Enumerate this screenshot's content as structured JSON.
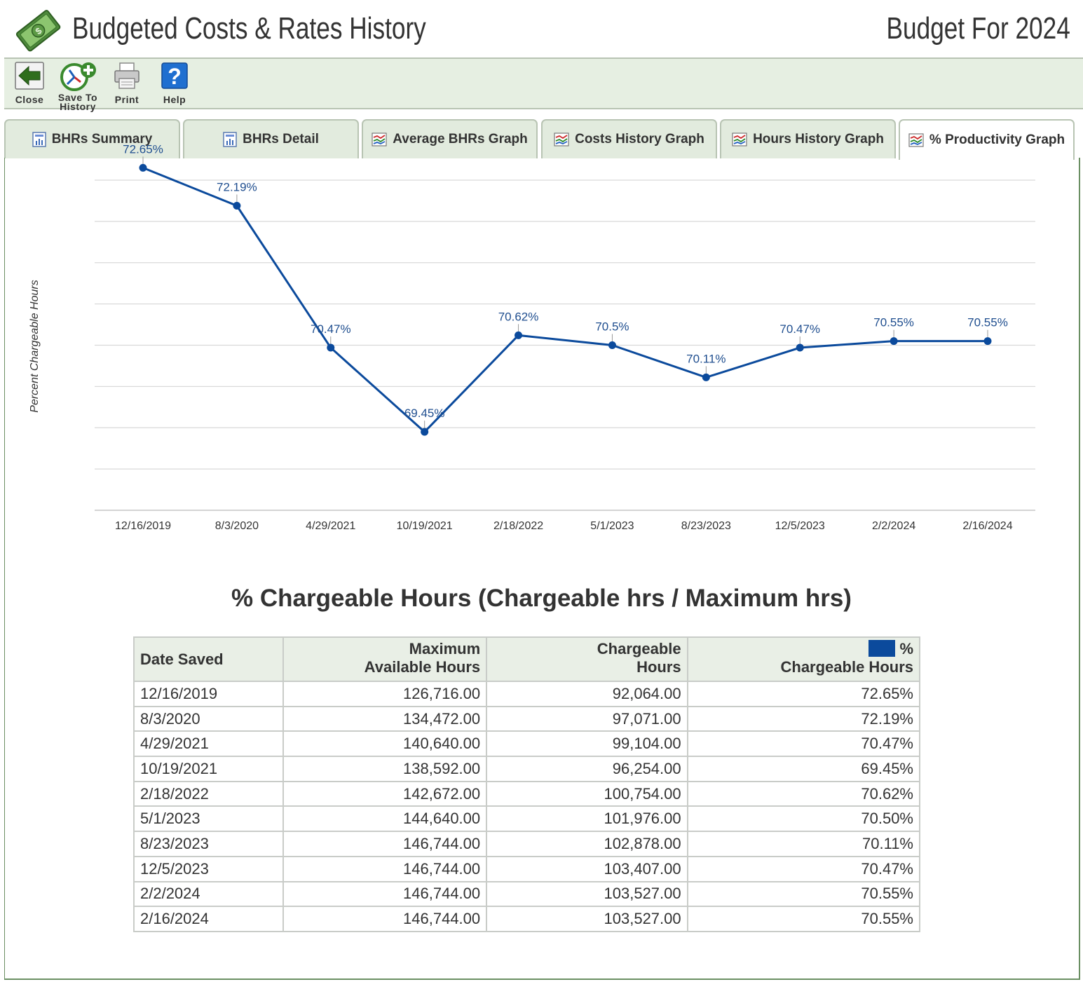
{
  "header": {
    "app_title": "Budgeted Costs & Rates History",
    "budget_title": "Budget For 2024"
  },
  "toolbar": {
    "close_label": "Close",
    "save_label_1": "Save To",
    "save_label_2": "History",
    "print_label": "Print",
    "help_label": "Help"
  },
  "tabs": [
    {
      "label": "BHRs Summary",
      "icon": "report-icon"
    },
    {
      "label": "BHRs Detail",
      "icon": "report-icon"
    },
    {
      "label": "Average BHRs Graph",
      "icon": "line-graph-icon"
    },
    {
      "label": "Costs History Graph",
      "icon": "line-graph-icon"
    },
    {
      "label": "Hours History Graph",
      "icon": "line-graph-icon"
    },
    {
      "label": "% Productivity Graph",
      "icon": "line-graph-icon",
      "active": true
    }
  ],
  "chart_data": {
    "type": "line",
    "ylabel": "Percent Chargeable Hours",
    "xlabel": "",
    "categories": [
      "12/16/2019",
      "8/3/2020",
      "4/29/2021",
      "10/19/2021",
      "2/18/2022",
      "5/1/2023",
      "8/23/2023",
      "12/5/2023",
      "2/2/2024",
      "2/16/2024"
    ],
    "series": [
      {
        "values": [
          72.65,
          72.19,
          70.47,
          69.45,
          70.62,
          70.5,
          70.11,
          70.47,
          70.55,
          70.55
        ],
        "data_labels": [
          "72.65%",
          "72.19%",
          "70.47%",
          "69.45%",
          "70.62%",
          "70.5%",
          "70.11%",
          "70.47%",
          "70.55%",
          "70.55%"
        ],
        "color": "#0b4a9c"
      }
    ],
    "ylim": [
      68.5,
      72.5
    ],
    "grid": true,
    "legend": "none"
  },
  "table": {
    "title": "% Chargeable Hours (Chargeable hrs / Maximum hrs)",
    "headers": {
      "date": "Date Saved",
      "max_1": "Maximum",
      "max_2": "Available Hours",
      "charge_1": "Chargeable",
      "charge_2": "Hours",
      "pct_1": "%",
      "pct_2": "Chargeable Hours"
    },
    "legend_color": "#0b4a9c",
    "rows": [
      [
        "12/16/2019",
        "126,716.00",
        "92,064.00",
        "72.65%"
      ],
      [
        "8/3/2020",
        "134,472.00",
        "97,071.00",
        "72.19%"
      ],
      [
        "4/29/2021",
        "140,640.00",
        "99,104.00",
        "70.47%"
      ],
      [
        "10/19/2021",
        "138,592.00",
        "96,254.00",
        "69.45%"
      ],
      [
        "2/18/2022",
        "142,672.00",
        "100,754.00",
        "70.62%"
      ],
      [
        "5/1/2023",
        "144,640.00",
        "101,976.00",
        "70.50%"
      ],
      [
        "8/23/2023",
        "146,744.00",
        "102,878.00",
        "70.11%"
      ],
      [
        "12/5/2023",
        "146,744.00",
        "103,407.00",
        "70.47%"
      ],
      [
        "2/2/2024",
        "146,744.00",
        "103,527.00",
        "70.55%"
      ],
      [
        "2/16/2024",
        "146,744.00",
        "103,527.00",
        "70.55%"
      ]
    ]
  }
}
